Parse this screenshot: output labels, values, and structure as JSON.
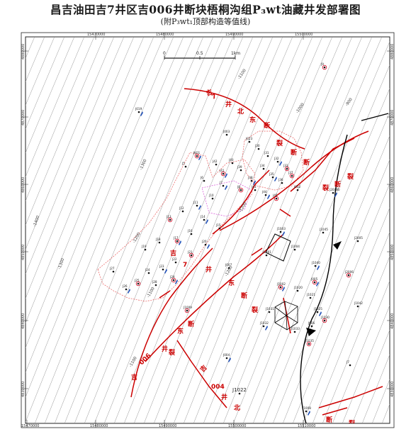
{
  "title": {
    "main": "昌吉油田吉7井区吉006井断块梧桐沟组P₃wt油藏井发部署图",
    "sub": "(附P₃wt₁顶部构造等值线)"
  },
  "map": {
    "scale_bar": {
      "labels": [
        "0",
        "0.5",
        "1km"
      ]
    },
    "grid_labels": {
      "top": [
        "15470000",
        "15480000",
        "15490000",
        "15500000"
      ],
      "bottom": [
        "15470000",
        "15480000",
        "15490000",
        "15500000",
        "15510000"
      ],
      "left": [
        "4880000",
        "4870000",
        "4860000",
        "4850000",
        "4840000",
        "4830000"
      ],
      "right": [
        "4880000",
        "4870000",
        "4860000",
        "4850000",
        "4840000",
        "4830000"
      ]
    },
    "contour_labels": [
      "-1100",
      "-1000",
      "-900",
      "-1400",
      "-1300",
      "-1200",
      "-1300",
      "-1200",
      "-1100",
      "-1100",
      "-1200"
    ],
    "fault_labels": [
      "吉",
      "7",
      "井",
      "北",
      "东",
      "断",
      "裂",
      "断",
      "断",
      "裂",
      "断",
      "裂",
      "吉",
      "7",
      "井",
      "东",
      "断",
      "裂",
      "吉",
      "006",
      "井",
      "东",
      "断",
      "裂",
      "吉",
      "004",
      "井",
      "北",
      "断",
      "裂"
    ],
    "well_labels": [
      "J9",
      "J019",
      "J003",
      "J023",
      "JK01",
      "J5",
      "J6",
      "J7",
      "J8",
      "J10",
      "J11",
      "J12",
      "J13",
      "J14",
      "J15",
      "J16",
      "J17",
      "J18",
      "J19",
      "J20",
      "J21",
      "J22",
      "J23",
      "J24",
      "J25",
      "J26",
      "J27",
      "J28",
      "J29",
      "J30",
      "J31",
      "J32",
      "J33",
      "J34",
      "J35",
      "J36",
      "J37",
      "J38",
      "J39",
      "J40",
      "J41",
      "J42",
      "J43",
      "J44",
      "J45",
      "J002",
      "J20080",
      "J2005",
      "J2006",
      "J1003",
      "J1004",
      "J1001",
      "J1002",
      "J1020",
      "J1021",
      "J1025",
      "J1030",
      "J1031",
      "J1032",
      "J1033",
      "J1035",
      "J1040",
      "J1042",
      "J1045",
      "J005",
      "J006",
      "J007",
      "J004",
      "J1009",
      "J1022",
      "J1008",
      "J7"
    ],
    "legend_colors": {
      "contour": "#888888",
      "fault": "#cc0000",
      "boundary": "#e85a5a",
      "oil_well": "#1f4fb8",
      "planned_well": "#d4001e",
      "basin_edge": "#000000"
    }
  }
}
